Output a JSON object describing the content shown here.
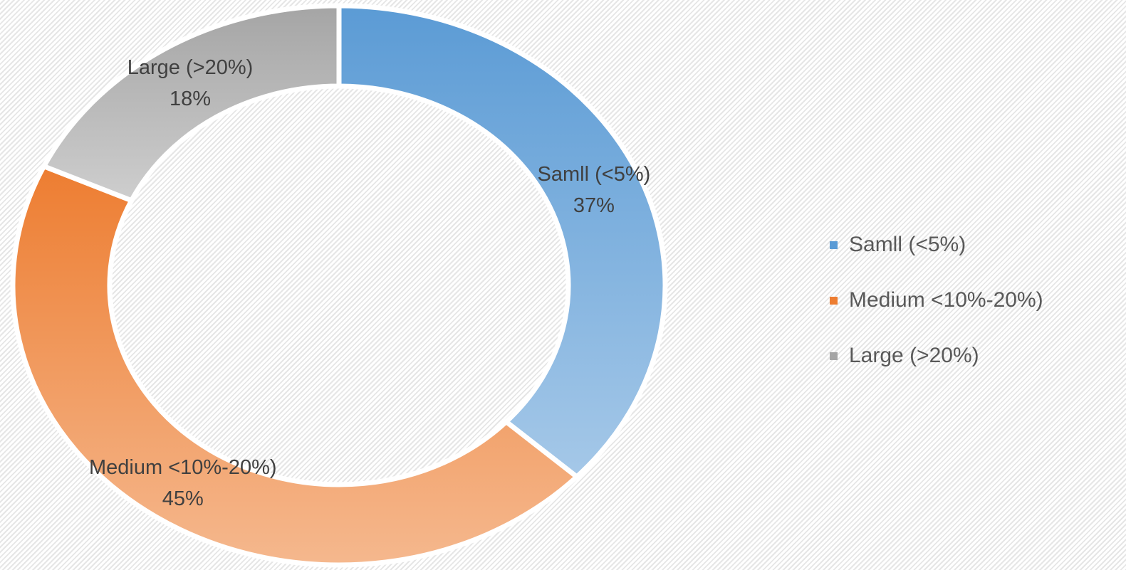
{
  "chart_data": {
    "type": "donut",
    "categories": [
      "Samll (<5%)",
      "Medium <10%-20%)",
      "Large (>20%)"
    ],
    "values": [
      37,
      45,
      18
    ],
    "value_labels": [
      "37%",
      "45%",
      "18%"
    ],
    "colors": [
      "#5b9bd5",
      "#ed7d31",
      "#a5a5a5"
    ],
    "legend": "right"
  }
}
